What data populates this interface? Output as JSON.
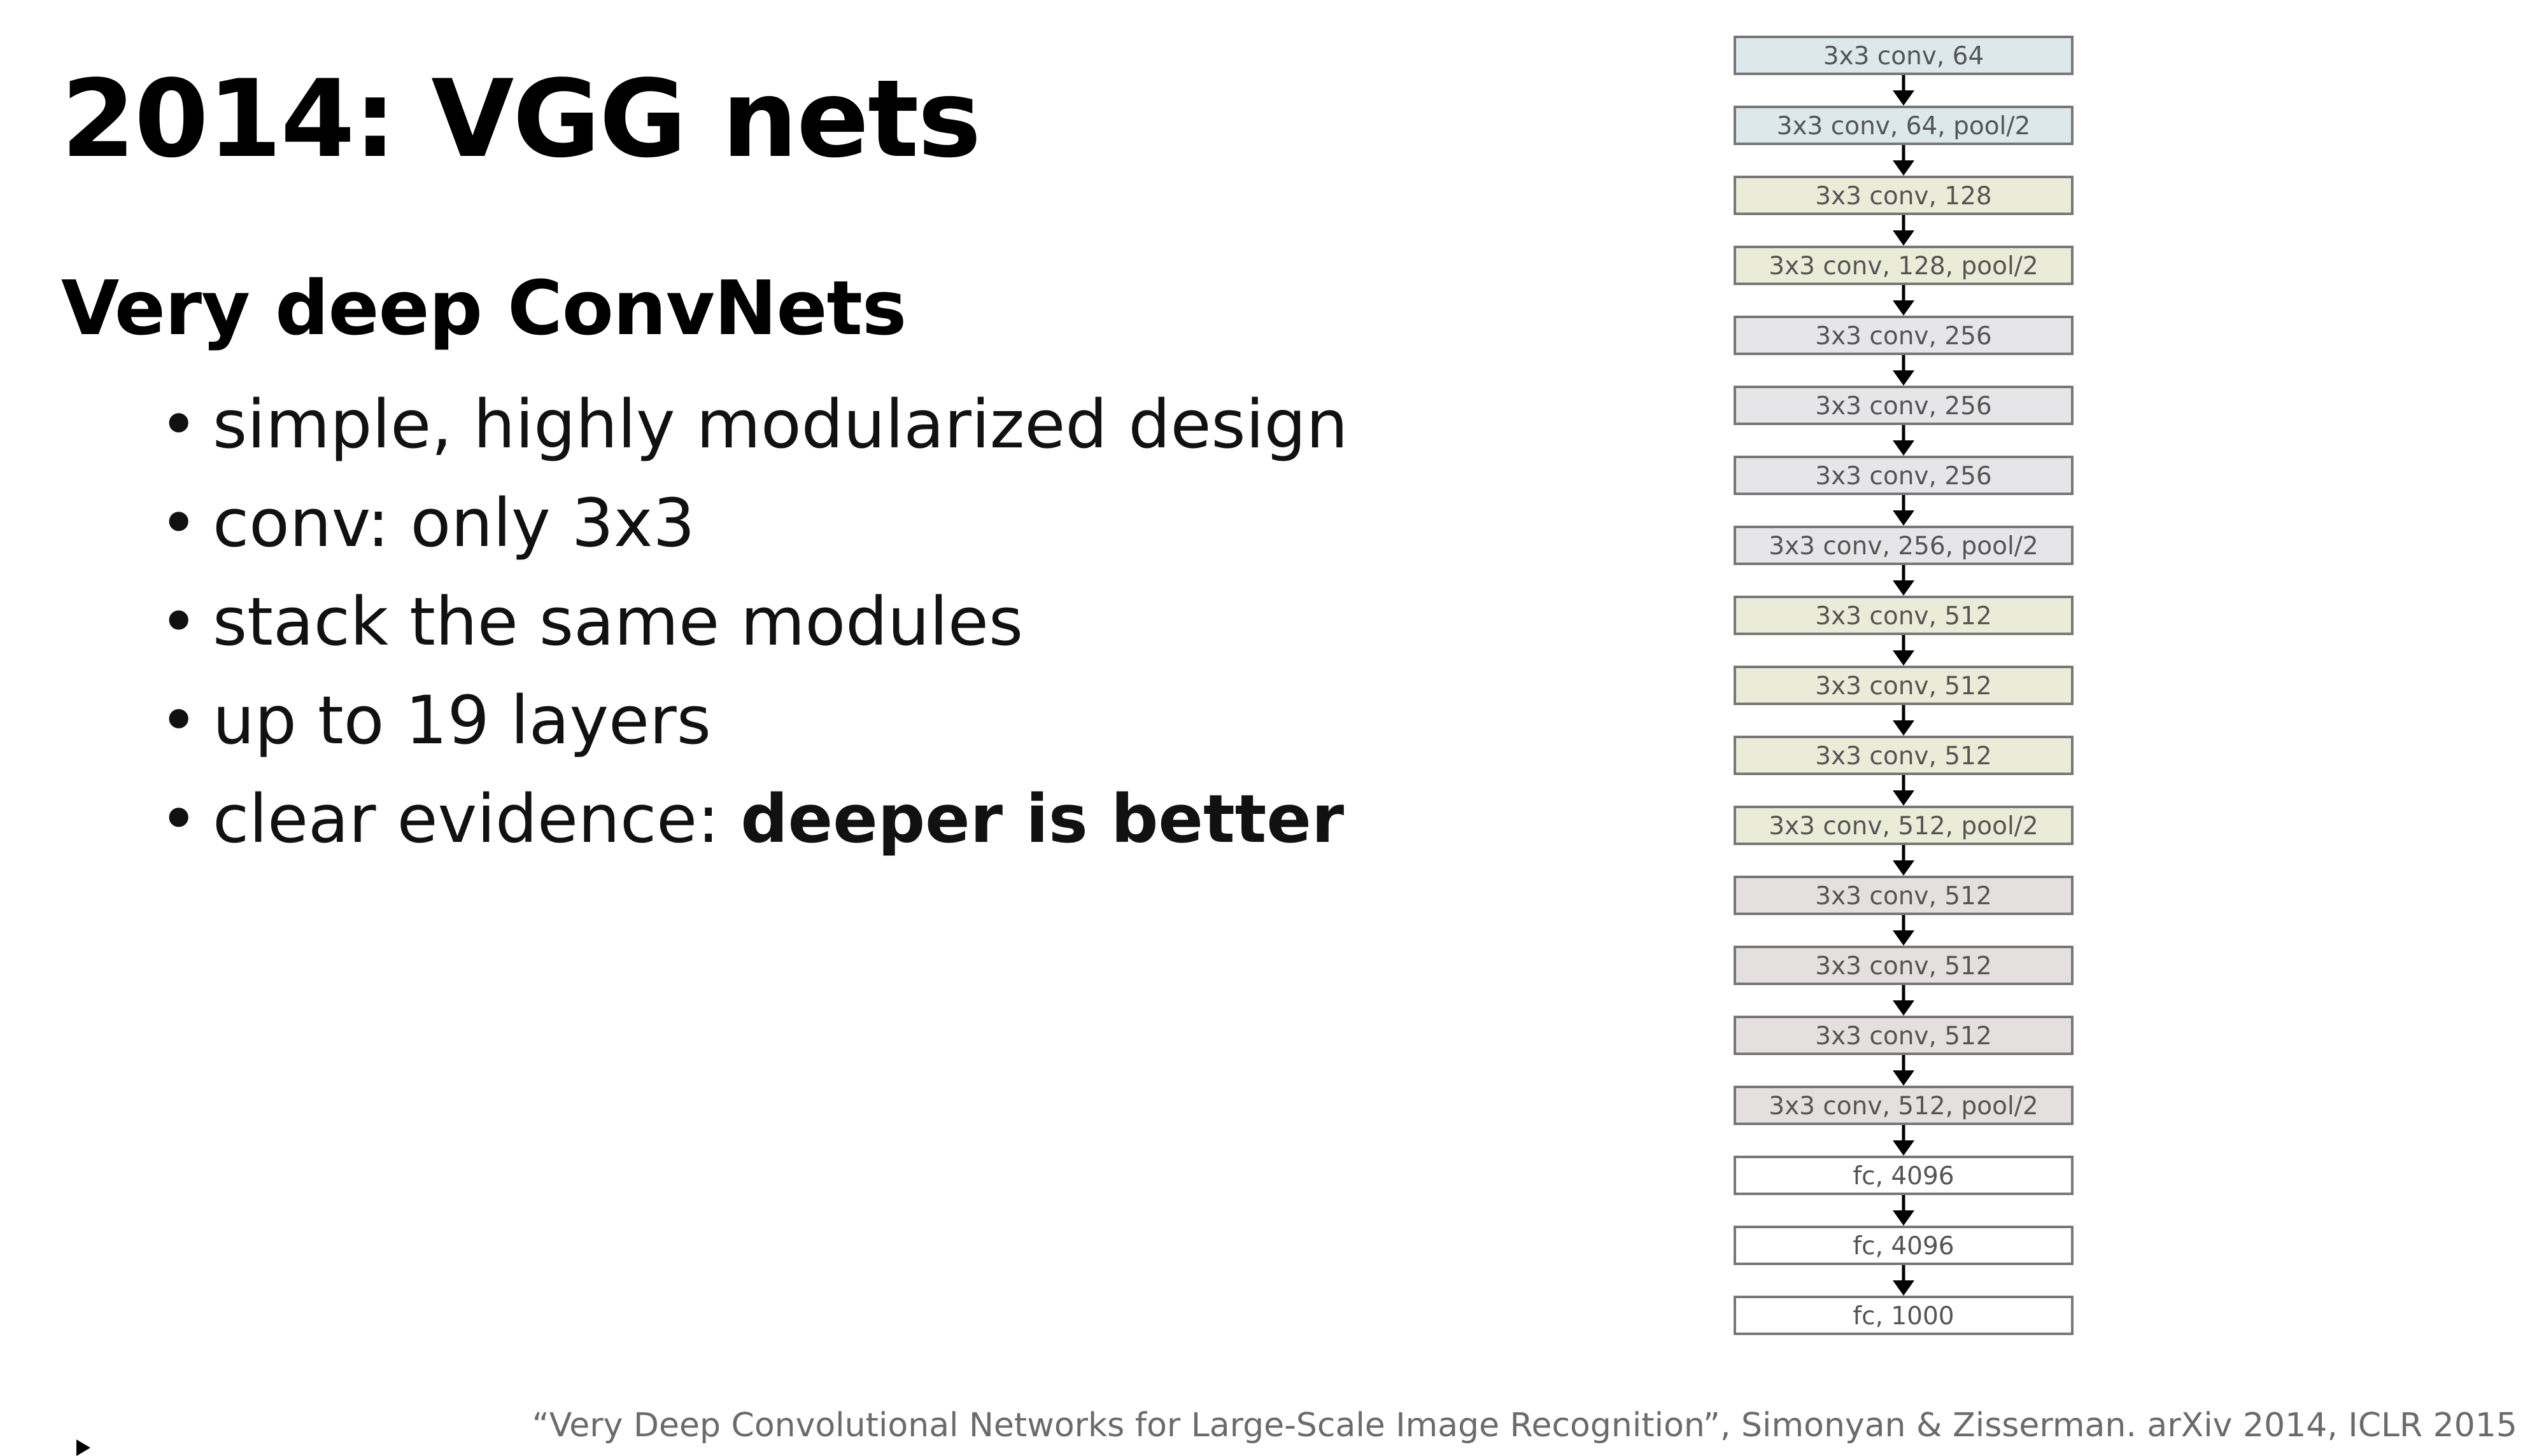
{
  "slide": {
    "title": "2014: VGG nets",
    "subtitle": "Very deep ConvNets",
    "bullets": [
      {
        "text": "simple, highly modularized design",
        "bold": ""
      },
      {
        "text": "conv: only 3x3",
        "bold": ""
      },
      {
        "text": "stack the same modules",
        "bold": ""
      },
      {
        "text": "up to 19 layers",
        "bold": ""
      },
      {
        "text": "clear evidence: ",
        "bold": "deeper is better"
      }
    ],
    "bullet_symbol": "•",
    "citation": "“Very Deep Convolutional Networks for Large-Scale Image Recognition”, Simonyan & Zisserman. arXiv 2014, ICLR 2015"
  },
  "diagram": {
    "layers": [
      {
        "label": "3x3 conv, 64",
        "color": "#dde8ec"
      },
      {
        "label": "3x3 conv, 64, pool/2",
        "color": "#dde8ec"
      },
      {
        "label": "3x3 conv, 128",
        "color": "#eaecd8"
      },
      {
        "label": "3x3 conv, 128, pool/2",
        "color": "#eaecd8"
      },
      {
        "label": "3x3 conv, 256",
        "color": "#e6e6e8"
      },
      {
        "label": "3x3 conv, 256",
        "color": "#e6e6e8"
      },
      {
        "label": "3x3 conv, 256",
        "color": "#e6e6e8"
      },
      {
        "label": "3x3 conv, 256, pool/2",
        "color": "#e6e6e8"
      },
      {
        "label": "3x3 conv, 512",
        "color": "#eaecd8"
      },
      {
        "label": "3x3 conv, 512",
        "color": "#eaecd8"
      },
      {
        "label": "3x3 conv, 512",
        "color": "#eaecd8"
      },
      {
        "label": "3x3 conv, 512, pool/2",
        "color": "#eaecd8"
      },
      {
        "label": "3x3 conv, 512",
        "color": "#e3e0df"
      },
      {
        "label": "3x3 conv, 512",
        "color": "#e3e0df"
      },
      {
        "label": "3x3 conv, 512",
        "color": "#e3e0df"
      },
      {
        "label": "3x3 conv, 512, pool/2",
        "color": "#e3e0df"
      },
      {
        "label": "fc, 4096",
        "color": "#ffffff"
      },
      {
        "label": "fc, 4096",
        "color": "#ffffff"
      },
      {
        "label": "fc, 1000",
        "color": "#ffffff"
      }
    ],
    "border_color": "#777777",
    "text_color": "#555555",
    "arrow_color": "#000000"
  }
}
